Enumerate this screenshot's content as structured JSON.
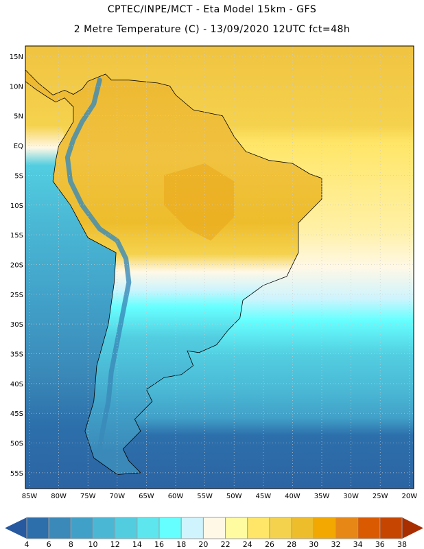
{
  "header": {
    "title": "CPTEC/INPE/MCT -  Eta Model 15km - GFS",
    "subtitle": "2 Metre Temperature (C) - 13/09/2020 12UTC fct=48h"
  },
  "map": {
    "variable": "2 Metre Temperature",
    "units": "C",
    "lat_labels": [
      "15N",
      "10N",
      "5N",
      "EQ",
      "5S",
      "10S",
      "15S",
      "20S",
      "25S",
      "30S",
      "35S",
      "40S",
      "45S",
      "50S",
      "55S"
    ],
    "lat_values": [
      15,
      10,
      5,
      0,
      -5,
      -10,
      -15,
      -20,
      -25,
      -30,
      -35,
      -40,
      -45,
      -50,
      -55
    ],
    "lon_labels": [
      "85W",
      "80W",
      "75W",
      "70W",
      "65W",
      "60W",
      "55W",
      "50W",
      "45W",
      "40W",
      "35W",
      "30W",
      "25W",
      "20W"
    ],
    "lon_values": [
      -85,
      -80,
      -75,
      -70,
      -65,
      -60,
      -55,
      -50,
      -45,
      -40,
      -35,
      -30,
      -25,
      -20
    ]
  },
  "colorbar": {
    "labels": [
      "4",
      "6",
      "8",
      "10",
      "12",
      "14",
      "16",
      "18",
      "20",
      "22",
      "24",
      "26",
      "28",
      "30",
      "32",
      "34",
      "36",
      "38"
    ],
    "colors": [
      "#2c6fab",
      "#3a89b8",
      "#41a0c8",
      "#4ab8d5",
      "#52cde0",
      "#5ee6ee",
      "#66ffff",
      "#cff4fd",
      "#fff8e6",
      "#fffba0",
      "#ffe668",
      "#f5d24e",
      "#eebd2c",
      "#f2a800",
      "#e68716",
      "#d95a00",
      "#c64500"
    ],
    "under_color": "#2659a0",
    "over_color": "#a82e00"
  }
}
